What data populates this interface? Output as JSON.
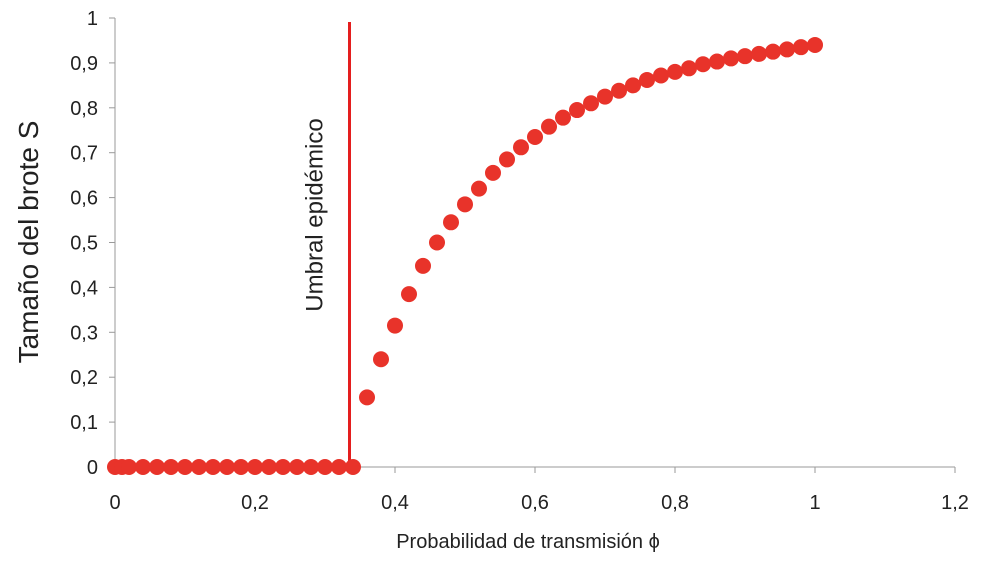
{
  "chart_data": {
    "type": "scatter",
    "xlabel": "Probabilidad de transmisión ϕ",
    "ylabel": "Tamaño del brote S",
    "xlim": [
      0,
      1.2
    ],
    "ylim": [
      0,
      1
    ],
    "x_ticks": [
      "0",
      "0,2",
      "0,4",
      "0,6",
      "0,8",
      "1",
      "1,2"
    ],
    "y_ticks": [
      "0",
      "0,1",
      "0,2",
      "0,3",
      "0,4",
      "0,5",
      "0,6",
      "0,7",
      "0,8",
      "0,9",
      "1"
    ],
    "threshold": {
      "x": 0.335,
      "label": "Umbral epidémico"
    },
    "grid": false,
    "marker_color": "#e8332a",
    "threshold_color": "#e41e1e",
    "series": [
      {
        "x": [
          0,
          0.01,
          0.02,
          0.04,
          0.06,
          0.08,
          0.1,
          0.12,
          0.14,
          0.16,
          0.18,
          0.2,
          0.22,
          0.24,
          0.26,
          0.28,
          0.3,
          0.32,
          0.34,
          0.36,
          0.38,
          0.4,
          0.42,
          0.44,
          0.46,
          0.48,
          0.5,
          0.52,
          0.54,
          0.56,
          0.58,
          0.6,
          0.62,
          0.64,
          0.66,
          0.68,
          0.7,
          0.72,
          0.74,
          0.76,
          0.78,
          0.8,
          0.82,
          0.84,
          0.86,
          0.88,
          0.9,
          0.92,
          0.94,
          0.96,
          0.98,
          1.0
        ],
        "y": [
          0,
          0,
          0,
          0,
          0,
          0,
          0,
          0,
          0,
          0,
          0,
          0,
          0,
          0,
          0,
          0,
          0,
          0,
          0,
          0.155,
          0.24,
          0.315,
          0.385,
          0.448,
          0.5,
          0.545,
          0.585,
          0.62,
          0.655,
          0.685,
          0.712,
          0.735,
          0.758,
          0.778,
          0.795,
          0.81,
          0.825,
          0.838,
          0.85,
          0.862,
          0.872,
          0.88,
          0.888,
          0.897,
          0.903,
          0.91,
          0.915,
          0.92,
          0.925,
          0.93,
          0.935,
          0.94
        ]
      }
    ]
  }
}
